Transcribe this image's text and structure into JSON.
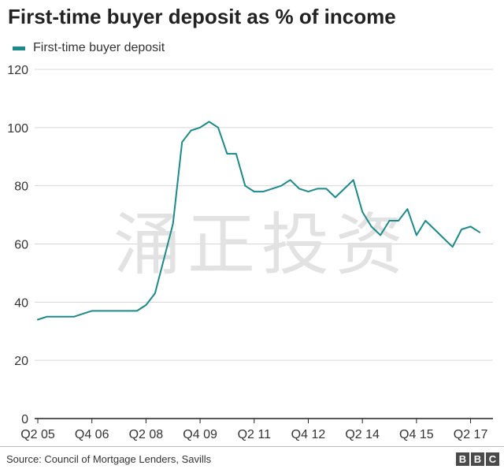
{
  "chart_data": {
    "type": "line",
    "title": "First-time buyer deposit as % of income",
    "xlabel": "",
    "ylabel": "",
    "ylim": [
      0,
      120
    ],
    "yticks": [
      0,
      20,
      40,
      60,
      80,
      100,
      120
    ],
    "grid": "horizontal",
    "legend_position": "top-left",
    "x_tick_labels": [
      "Q2 05",
      "Q4 06",
      "Q2 08",
      "Q4 09",
      "Q2 11",
      "Q4 12",
      "Q2 14",
      "Q4 15",
      "Q2 17"
    ],
    "x_tick_quarter_index": [
      0,
      6,
      12,
      18,
      24,
      30,
      36,
      42,
      48
    ],
    "series": [
      {
        "name": "First-time buyer deposit",
        "color": "#1a8a8a",
        "values": [
          34,
          35,
          35,
          35,
          35,
          36,
          37,
          37,
          37,
          37,
          37,
          37,
          39,
          43,
          55,
          67,
          95,
          99,
          100,
          102,
          100,
          91,
          91,
          80,
          78,
          78,
          79,
          80,
          82,
          79,
          78,
          79,
          79,
          76,
          79,
          82,
          71,
          66,
          63,
          68,
          68,
          72,
          63,
          68,
          65,
          62,
          59,
          65,
          66,
          64
        ]
      }
    ]
  },
  "watermark": "涌正投资",
  "source": "Source: Council of Mortgage Lenders, Savills",
  "brand": [
    "B",
    "B",
    "C"
  ]
}
